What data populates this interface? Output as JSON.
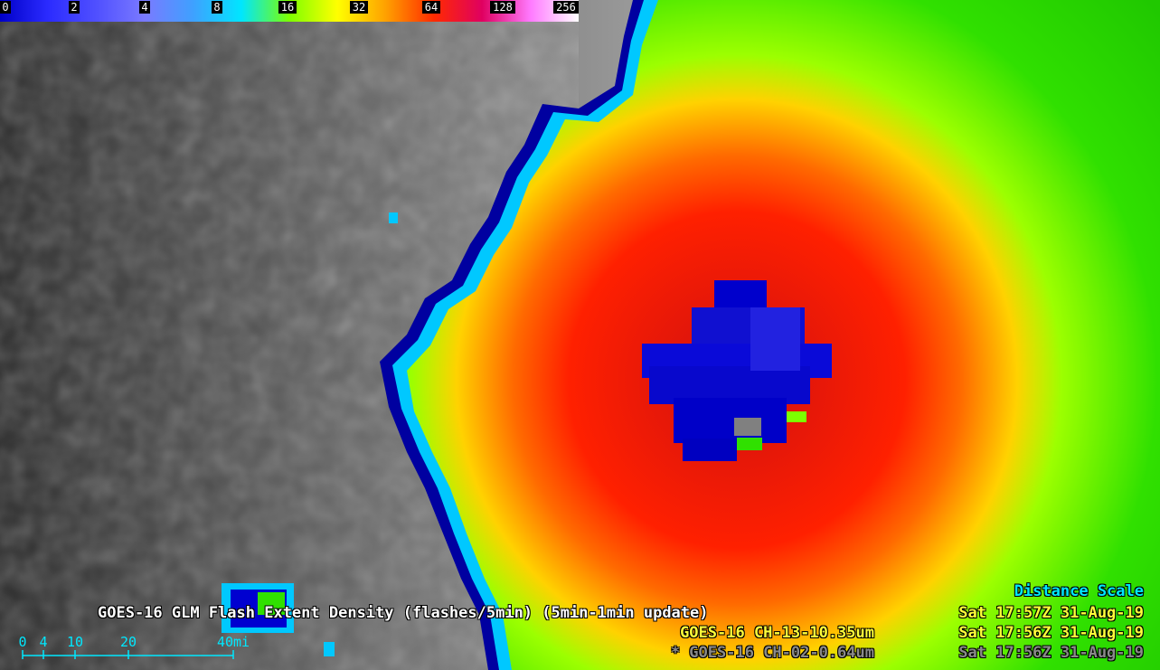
{
  "colorbar": {
    "ticks": [
      "0",
      "2",
      "4",
      "8",
      "16",
      "32",
      "64",
      "128",
      "256"
    ],
    "colors": [
      "#0000c8",
      "#2b2bff",
      "#5050ff",
      "#7a7aff",
      "#3fa0ff",
      "#00e6ff",
      "#7dff00",
      "#ffff00",
      "#ffa000",
      "#ff2a00",
      "#e00060",
      "#ff7aff",
      "#ffffff"
    ]
  },
  "captions": {
    "distance_title": "Distance Scale",
    "glm_label": "GOES-16 GLM Flash Extent Density (flashes/5min) (5min-1min update)",
    "glm_time": "Sat 17:57Z 31-Aug-19",
    "ch13_label": "GOES-16 CH-13-10.35um",
    "ch13_time": "Sat 17:56Z 31-Aug-19",
    "ch02_label": "* GOES-16 CH-02-0.64um",
    "ch02_time": "Sat 17:56Z 31-Aug-19"
  },
  "distance_scale": {
    "ticks": [
      "0",
      "4",
      "10",
      "20",
      "40mi"
    ]
  },
  "colors": {
    "caption_cyan": "#00e8ff",
    "caption_white": "#ffffff",
    "caption_yellow": "#ffff3a",
    "caption_gray": "#8a8a8a"
  }
}
